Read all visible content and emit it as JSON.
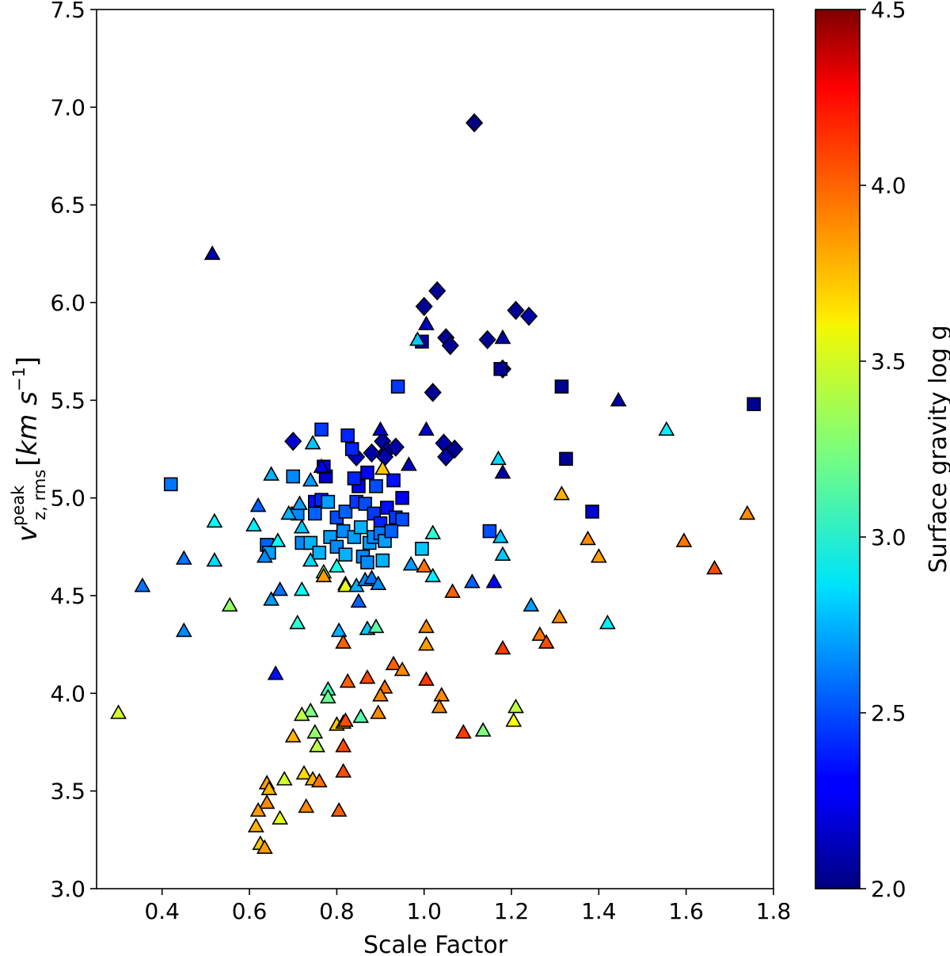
{
  "chart_data": {
    "type": "scatter",
    "xlabel": "Scale Factor",
    "ylabel": {
      "base": "v",
      "sup": "peak",
      "sub": "z, rms",
      "units_open": "[",
      "units_math": "km s",
      "units_exp": "−1",
      "units_close": "]"
    },
    "xlim": [
      0.25,
      1.8
    ],
    "ylim": [
      3.0,
      7.5
    ],
    "xticks": [
      "0.4",
      "0.6",
      "0.8",
      "1.0",
      "1.2",
      "1.4",
      "1.6",
      "1.8"
    ],
    "yticks": [
      "3.0",
      "3.5",
      "4.0",
      "4.5",
      "5.0",
      "5.5",
      "6.0",
      "6.5",
      "7.0",
      "7.5"
    ],
    "grid": false,
    "colorbar": {
      "label": "Surface gravity log g",
      "range": [
        2.0,
        4.5
      ],
      "ticks": [
        "2.0",
        "2.5",
        "3.0",
        "3.5",
        "4.0",
        "4.5"
      ],
      "colormap": "jet"
    },
    "series": [
      {
        "marker": "diamond",
        "points": [
          [
            1.115,
            6.92,
            2.0
          ],
          [
            0.7,
            5.29,
            2.2
          ],
          [
            1.03,
            6.06,
            2.05
          ],
          [
            1.0,
            5.98,
            2.05
          ],
          [
            1.21,
            5.96,
            2.05
          ],
          [
            1.24,
            5.93,
            2.1
          ],
          [
            1.145,
            5.81,
            2.05
          ],
          [
            1.05,
            5.82,
            2.05
          ],
          [
            1.06,
            5.78,
            2.05
          ],
          [
            1.18,
            5.66,
            2.05
          ],
          [
            1.02,
            5.54,
            2.05
          ],
          [
            1.045,
            5.28,
            2.1
          ],
          [
            1.07,
            5.25,
            2.05
          ],
          [
            1.05,
            5.21,
            2.1
          ],
          [
            0.845,
            5.21,
            2.15
          ],
          [
            0.88,
            5.23,
            2.1
          ],
          [
            0.905,
            5.29,
            2.1
          ],
          [
            0.915,
            5.24,
            2.15
          ],
          [
            0.935,
            5.26,
            2.1
          ],
          [
            0.91,
            5.21,
            2.1
          ]
        ]
      },
      {
        "marker": "square",
        "points": [
          [
            0.42,
            5.07,
            2.6
          ],
          [
            1.755,
            5.48,
            2.05
          ],
          [
            0.94,
            5.57,
            2.45
          ],
          [
            0.995,
            5.8,
            2.1
          ],
          [
            1.175,
            5.66,
            2.05
          ],
          [
            1.315,
            5.57,
            2.05
          ],
          [
            1.325,
            5.2,
            2.05
          ],
          [
            1.385,
            4.93,
            2.2
          ],
          [
            1.15,
            4.83,
            2.5
          ],
          [
            0.765,
            5.35,
            2.45
          ],
          [
            0.825,
            5.32,
            2.4
          ],
          [
            0.835,
            5.25,
            2.4
          ],
          [
            0.7,
            5.11,
            2.65
          ],
          [
            0.775,
            5.11,
            2.2
          ],
          [
            0.77,
            5.16,
            2.25
          ],
          [
            0.85,
            5.06,
            2.3
          ],
          [
            0.89,
            5.06,
            2.5
          ],
          [
            0.93,
            5.09,
            2.35
          ],
          [
            0.87,
            5.13,
            2.3
          ],
          [
            0.84,
            5.1,
            2.4
          ],
          [
            0.71,
            4.92,
            2.65
          ],
          [
            0.75,
            4.98,
            2.35
          ],
          [
            0.765,
            4.99,
            2.4
          ],
          [
            0.75,
            4.92,
            2.55
          ],
          [
            0.78,
            4.98,
            2.7
          ],
          [
            0.8,
            4.9,
            2.5
          ],
          [
            0.82,
            4.93,
            2.55
          ],
          [
            0.845,
            4.98,
            2.45
          ],
          [
            0.865,
            4.97,
            2.5
          ],
          [
            0.885,
            4.92,
            2.45
          ],
          [
            0.9,
            4.87,
            2.4
          ],
          [
            0.915,
            4.95,
            2.35
          ],
          [
            0.935,
            4.9,
            2.45
          ],
          [
            0.95,
            5.0,
            2.3
          ],
          [
            0.95,
            4.89,
            2.5
          ],
          [
            0.64,
            4.76,
            2.55
          ],
          [
            0.645,
            4.72,
            2.7
          ],
          [
            0.72,
            4.77,
            2.65
          ],
          [
            0.74,
            4.77,
            2.75
          ],
          [
            0.76,
            4.72,
            2.75
          ],
          [
            0.785,
            4.8,
            2.7
          ],
          [
            0.8,
            4.75,
            2.65
          ],
          [
            0.815,
            4.83,
            2.65
          ],
          [
            0.84,
            4.8,
            2.7
          ],
          [
            0.855,
            4.85,
            2.75
          ],
          [
            0.86,
            4.7,
            2.65
          ],
          [
            0.875,
            4.77,
            2.7
          ],
          [
            0.885,
            4.8,
            2.65
          ],
          [
            0.9,
            4.82,
            2.6
          ],
          [
            0.91,
            4.78,
            2.7
          ],
          [
            0.925,
            4.83,
            2.55
          ],
          [
            0.905,
            4.68,
            2.75
          ],
          [
            0.995,
            4.74,
            2.8
          ],
          [
            0.82,
            4.71,
            2.75
          ],
          [
            0.87,
            4.67,
            2.65
          ]
        ]
      },
      {
        "marker": "triangle",
        "points": [
          [
            0.515,
            6.25,
            2.1
          ],
          [
            1.005,
            5.89,
            2.15
          ],
          [
            0.985,
            5.81,
            2.8
          ],
          [
            1.18,
            5.82,
            2.1
          ],
          [
            1.445,
            5.5,
            2.1
          ],
          [
            1.555,
            5.35,
            2.9
          ],
          [
            1.005,
            5.35,
            2.2
          ],
          [
            0.9,
            5.35,
            2.2
          ],
          [
            0.965,
            5.17,
            2.15
          ],
          [
            1.17,
            5.2,
            2.85
          ],
          [
            1.18,
            5.13,
            2.1
          ],
          [
            0.745,
            5.28,
            2.8
          ],
          [
            0.765,
            5.16,
            2.3
          ],
          [
            0.74,
            5.09,
            2.7
          ],
          [
            0.905,
            5.15,
            3.7
          ],
          [
            0.65,
            5.12,
            2.75
          ],
          [
            0.62,
            4.96,
            2.55
          ],
          [
            0.61,
            4.86,
            2.9
          ],
          [
            0.52,
            4.88,
            2.95
          ],
          [
            0.665,
            4.78,
            2.95
          ],
          [
            0.72,
            4.85,
            2.8
          ],
          [
            0.635,
            4.7,
            2.65
          ],
          [
            0.715,
            4.97,
            2.7
          ],
          [
            0.69,
            4.92,
            2.75
          ],
          [
            0.52,
            4.68,
            2.85
          ],
          [
            0.45,
            4.69,
            2.6
          ],
          [
            0.355,
            4.55,
            2.6
          ],
          [
            0.45,
            4.32,
            2.65
          ],
          [
            0.555,
            4.45,
            3.3
          ],
          [
            0.65,
            4.48,
            2.7
          ],
          [
            0.67,
            4.53,
            2.6
          ],
          [
            0.72,
            4.53,
            2.95
          ],
          [
            0.74,
            4.68,
            2.85
          ],
          [
            0.77,
            4.62,
            3.3
          ],
          [
            0.77,
            4.6,
            3.8
          ],
          [
            0.8,
            4.65,
            3.0
          ],
          [
            0.82,
            4.56,
            3.6
          ],
          [
            0.82,
            4.55,
            3.5
          ],
          [
            0.845,
            4.55,
            2.75
          ],
          [
            0.865,
            4.58,
            2.65
          ],
          [
            0.88,
            4.59,
            2.6
          ],
          [
            0.895,
            4.56,
            2.65
          ],
          [
            0.85,
            4.47,
            2.55
          ],
          [
            0.87,
            4.33,
            2.8
          ],
          [
            0.89,
            4.34,
            3.15
          ],
          [
            0.805,
            4.32,
            2.75
          ],
          [
            0.815,
            4.26,
            3.95
          ],
          [
            0.71,
            4.36,
            3.05
          ],
          [
            0.66,
            4.1,
            2.35
          ],
          [
            0.97,
            4.66,
            2.7
          ],
          [
            1.0,
            4.65,
            3.9
          ],
          [
            1.02,
            4.82,
            3.05
          ],
          [
            1.02,
            4.6,
            2.9
          ],
          [
            1.065,
            4.52,
            3.95
          ],
          [
            1.11,
            4.57,
            2.55
          ],
          [
            1.16,
            4.57,
            2.3
          ],
          [
            1.18,
            4.71,
            2.8
          ],
          [
            1.175,
            4.8,
            2.8
          ],
          [
            1.245,
            4.45,
            2.7
          ],
          [
            1.315,
            5.02,
            3.75
          ],
          [
            1.375,
            4.79,
            3.85
          ],
          [
            1.4,
            4.7,
            3.8
          ],
          [
            1.42,
            4.36,
            2.9
          ],
          [
            1.595,
            4.78,
            3.9
          ],
          [
            1.665,
            4.64,
            4.0
          ],
          [
            1.74,
            4.92,
            3.85
          ],
          [
            1.31,
            4.39,
            3.85
          ],
          [
            1.265,
            4.3,
            3.9
          ],
          [
            1.28,
            4.26,
            4.0
          ],
          [
            1.18,
            4.23,
            4.05
          ],
          [
            1.005,
            4.34,
            3.85
          ],
          [
            1.005,
            4.25,
            3.8
          ],
          [
            0.93,
            4.15,
            3.95
          ],
          [
            0.95,
            4.12,
            3.85
          ],
          [
            0.91,
            4.03,
            3.9
          ],
          [
            0.9,
            3.99,
            3.85
          ],
          [
            0.87,
            4.08,
            4.0
          ],
          [
            0.825,
            4.06,
            3.95
          ],
          [
            0.78,
            4.02,
            3.1
          ],
          [
            0.78,
            3.98,
            3.2
          ],
          [
            0.74,
            3.91,
            3.25
          ],
          [
            0.72,
            3.89,
            3.4
          ],
          [
            0.75,
            3.8,
            3.3
          ],
          [
            0.8,
            3.84,
            3.7
          ],
          [
            0.815,
            3.85,
            3.85
          ],
          [
            0.82,
            3.86,
            4.0
          ],
          [
            0.855,
            3.88,
            3.15
          ],
          [
            0.895,
            3.9,
            3.85
          ],
          [
            1.005,
            4.07,
            4.05
          ],
          [
            1.04,
            3.99,
            3.85
          ],
          [
            1.035,
            3.93,
            3.85
          ],
          [
            1.09,
            3.8,
            4.05
          ],
          [
            1.135,
            3.81,
            3.25
          ],
          [
            1.21,
            3.93,
            3.4
          ],
          [
            1.205,
            3.86,
            3.55
          ],
          [
            0.3,
            3.9,
            3.45
          ],
          [
            0.7,
            3.78,
            3.75
          ],
          [
            0.755,
            3.73,
            3.4
          ],
          [
            0.815,
            3.73,
            4.0
          ],
          [
            0.68,
            3.56,
            3.45
          ],
          [
            0.725,
            3.59,
            3.65
          ],
          [
            0.745,
            3.56,
            3.75
          ],
          [
            0.76,
            3.55,
            3.9
          ],
          [
            0.815,
            3.6,
            4.0
          ],
          [
            0.64,
            3.54,
            3.8
          ],
          [
            0.645,
            3.51,
            3.75
          ],
          [
            0.64,
            3.44,
            3.85
          ],
          [
            0.67,
            3.36,
            3.5
          ],
          [
            0.73,
            3.42,
            3.85
          ],
          [
            0.805,
            3.4,
            3.95
          ],
          [
            0.62,
            3.4,
            3.8
          ],
          [
            0.615,
            3.32,
            3.75
          ],
          [
            0.625,
            3.23,
            3.7
          ],
          [
            0.635,
            3.21,
            3.8
          ]
        ]
      }
    ]
  }
}
